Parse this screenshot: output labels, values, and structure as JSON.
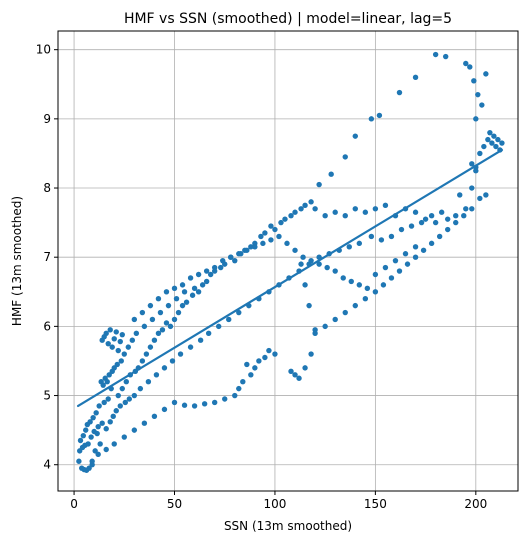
{
  "chart_data": {
    "type": "scatter",
    "title": "HMF vs SSN (smoothed)  |  model=linear, lag=5",
    "xlabel": "SSN (13m smoothed)",
    "ylabel": "HMF (13m smoothed)",
    "xlim": [
      -8,
      221
    ],
    "ylim": [
      3.62,
      10.27
    ],
    "xticks": [
      0,
      50,
      100,
      150,
      200
    ],
    "yticks": [
      4,
      5,
      6,
      7,
      8,
      9,
      10
    ],
    "grid": true,
    "colors": {
      "points": "#1f77b4",
      "fit_line": "#1f77b4",
      "grid": "#b0b0b0"
    },
    "fit_line": {
      "x": [
        2,
        213
      ],
      "y": [
        4.85,
        8.55
      ]
    },
    "points": [
      [
        2.4,
        4.05
      ],
      [
        2.8,
        4.2
      ],
      [
        3.2,
        4.35
      ],
      [
        3.8,
        3.95
      ],
      [
        4.2,
        4.25
      ],
      [
        4.6,
        4.42
      ],
      [
        5.0,
        3.93
      ],
      [
        5.4,
        4.28
      ],
      [
        5.8,
        4.5
      ],
      [
        6.2,
        3.92
      ],
      [
        6.6,
        4.58
      ],
      [
        7.0,
        4.3
      ],
      [
        7.5,
        3.95
      ],
      [
        8.0,
        4.62
      ],
      [
        8.5,
        4.4
      ],
      [
        9.0,
        4.0
      ],
      [
        9.5,
        4.68
      ],
      [
        10.0,
        4.48
      ],
      [
        10.5,
        4.2
      ],
      [
        11.0,
        4.75
      ],
      [
        11.5,
        4.45
      ],
      [
        12.0,
        4.55
      ],
      [
        12.5,
        4.85
      ],
      [
        13.0,
        4.3
      ],
      [
        13.5,
        5.2
      ],
      [
        14.0,
        4.6
      ],
      [
        14.5,
        5.15
      ],
      [
        15.0,
        4.9
      ],
      [
        15.5,
        5.25
      ],
      [
        16.0,
        4.52
      ],
      [
        16.5,
        5.2
      ],
      [
        17.0,
        4.95
      ],
      [
        17.5,
        5.3
      ],
      [
        18.0,
        4.62
      ],
      [
        18.5,
        5.1
      ],
      [
        19.0,
        5.35
      ],
      [
        19.5,
        4.7
      ],
      [
        20.0,
        5.4
      ],
      [
        21.0,
        4.78
      ],
      [
        21.5,
        5.45
      ],
      [
        22.0,
        5.0
      ],
      [
        23.0,
        4.85
      ],
      [
        23.5,
        5.5
      ],
      [
        24.0,
        5.1
      ],
      [
        25.0,
        5.6
      ],
      [
        25.5,
        4.9
      ],
      [
        26.0,
        5.2
      ],
      [
        27.0,
        5.7
      ],
      [
        27.5,
        4.95
      ],
      [
        28.0,
        5.3
      ],
      [
        29.0,
        5.8
      ],
      [
        30.0,
        5.0
      ],
      [
        30.5,
        5.35
      ],
      [
        31.0,
        5.9
      ],
      [
        32.0,
        5.4
      ],
      [
        33.0,
        5.1
      ],
      [
        34.0,
        5.5
      ],
      [
        35.0,
        6.0
      ],
      [
        36.0,
        5.6
      ],
      [
        37.0,
        5.2
      ],
      [
        38.0,
        5.7
      ],
      [
        39.0,
        6.1
      ],
      [
        40.0,
        5.8
      ],
      [
        41.0,
        5.3
      ],
      [
        42.0,
        5.9
      ],
      [
        43.0,
        6.2
      ],
      [
        44.0,
        5.95
      ],
      [
        45.0,
        5.4
      ],
      [
        46.0,
        6.05
      ],
      [
        47.0,
        6.3
      ],
      [
        48.0,
        6.0
      ],
      [
        49.0,
        5.5
      ],
      [
        50.0,
        6.1
      ],
      [
        51.0,
        6.4
      ],
      [
        52.0,
        6.2
      ],
      [
        53.0,
        5.6
      ],
      [
        54.0,
        6.3
      ],
      [
        55.0,
        6.5
      ],
      [
        56.0,
        6.35
      ],
      [
        58.0,
        5.7
      ],
      [
        59.0,
        6.45
      ],
      [
        60.0,
        6.55
      ],
      [
        62.0,
        6.5
      ],
      [
        63.0,
        5.8
      ],
      [
        64.0,
        6.6
      ],
      [
        66.0,
        6.65
      ],
      [
        67.0,
        5.9
      ],
      [
        68.0,
        6.75
      ],
      [
        70.0,
        6.8
      ],
      [
        72.0,
        6.0
      ],
      [
        73.0,
        6.85
      ],
      [
        75.0,
        6.9
      ],
      [
        77.0,
        6.1
      ],
      [
        78.0,
        7.0
      ],
      [
        80.0,
        6.95
      ],
      [
        82.0,
        6.2
      ],
      [
        83.0,
        7.05
      ],
      [
        85.0,
        7.1
      ],
      [
        87.0,
        6.3
      ],
      [
        88.0,
        7.15
      ],
      [
        90.0,
        7.2
      ],
      [
        92.0,
        6.4
      ],
      [
        93.0,
        7.3
      ],
      [
        95.0,
        7.35
      ],
      [
        97.0,
        6.5
      ],
      [
        98.0,
        7.45
      ],
      [
        100.0,
        7.4
      ],
      [
        102.0,
        6.6
      ],
      [
        103.0,
        7.5
      ],
      [
        105.0,
        7.55
      ],
      [
        107.0,
        6.7
      ],
      [
        108.0,
        7.6
      ],
      [
        110.0,
        7.65
      ],
      [
        112.0,
        6.8
      ],
      [
        113.0,
        7.7
      ],
      [
        115.0,
        7.75
      ],
      [
        117.0,
        6.9
      ],
      [
        118.0,
        7.8
      ],
      [
        120.0,
        7.7
      ],
      [
        122.0,
        7.0
      ],
      [
        125.0,
        7.6
      ],
      [
        127.0,
        7.05
      ],
      [
        130.0,
        7.65
      ],
      [
        132.0,
        7.1
      ],
      [
        135.0,
        7.6
      ],
      [
        137.0,
        7.15
      ],
      [
        140.0,
        7.7
      ],
      [
        142.0,
        7.2
      ],
      [
        145.0,
        7.65
      ],
      [
        148.0,
        7.3
      ],
      [
        150.0,
        7.7
      ],
      [
        153.0,
        7.25
      ],
      [
        155.0,
        7.75
      ],
      [
        158.0,
        7.3
      ],
      [
        160.0,
        7.6
      ],
      [
        163.0,
        7.4
      ],
      [
        165.0,
        7.7
      ],
      [
        168.0,
        7.45
      ],
      [
        170.0,
        7.65
      ],
      [
        173.0,
        7.5
      ],
      [
        175.0,
        7.55
      ],
      [
        178.0,
        7.6
      ],
      [
        180.0,
        7.5
      ],
      [
        183.0,
        7.65
      ],
      [
        186.0,
        7.55
      ],
      [
        190.0,
        7.6
      ],
      [
        192.0,
        7.9
      ],
      [
        195.0,
        7.7
      ],
      [
        198.0,
        8.0
      ],
      [
        200.0,
        8.3
      ],
      [
        202.0,
        8.5
      ],
      [
        204.0,
        8.6
      ],
      [
        206.0,
        8.7
      ],
      [
        207.0,
        8.8
      ],
      [
        208.0,
        8.65
      ],
      [
        209.0,
        8.75
      ],
      [
        210.0,
        8.6
      ],
      [
        211.0,
        8.7
      ],
      [
        212.0,
        8.55
      ],
      [
        213.0,
        8.65
      ],
      [
        203.0,
        9.2
      ],
      [
        201.0,
        9.35
      ],
      [
        200.0,
        9.0
      ],
      [
        199.0,
        9.55
      ],
      [
        205.0,
        9.65
      ],
      [
        197.0,
        9.75
      ],
      [
        195.0,
        9.8
      ],
      [
        185.0,
        9.9
      ],
      [
        180.0,
        9.93
      ],
      [
        170.0,
        9.6
      ],
      [
        162.0,
        9.38
      ],
      [
        152.0,
        9.05
      ],
      [
        148.0,
        9.0
      ],
      [
        140.0,
        8.75
      ],
      [
        135.0,
        8.45
      ],
      [
        128.0,
        8.2
      ],
      [
        122.0,
        8.05
      ],
      [
        202.0,
        7.85
      ],
      [
        205.0,
        7.9
      ],
      [
        200.0,
        8.25
      ],
      [
        198.0,
        8.35
      ],
      [
        110.0,
        5.3
      ],
      [
        108.0,
        5.35
      ],
      [
        112.0,
        5.25
      ],
      [
        115.0,
        5.4
      ],
      [
        118.0,
        5.6
      ],
      [
        120.0,
        5.9
      ],
      [
        117.0,
        6.3
      ],
      [
        115.0,
        6.6
      ],
      [
        113.0,
        6.9
      ],
      [
        100.0,
        5.6
      ],
      [
        97.0,
        5.65
      ],
      [
        95.0,
        5.55
      ],
      [
        92.0,
        5.5
      ],
      [
        90.0,
        5.4
      ],
      [
        88.0,
        5.3
      ],
      [
        86.0,
        5.45
      ],
      [
        84.0,
        5.2
      ],
      [
        82.0,
        5.1
      ],
      [
        80.0,
        5.0
      ],
      [
        75.0,
        4.95
      ],
      [
        70.0,
        4.9
      ],
      [
        65.0,
        4.88
      ],
      [
        60.0,
        4.85
      ],
      [
        55.0,
        4.86
      ],
      [
        50.0,
        4.9
      ],
      [
        45.0,
        4.8
      ],
      [
        40.0,
        4.7
      ],
      [
        35.0,
        4.6
      ],
      [
        30.0,
        4.5
      ],
      [
        25.0,
        4.4
      ],
      [
        20.0,
        4.3
      ],
      [
        16.0,
        4.22
      ],
      [
        12.0,
        4.15
      ],
      [
        9.0,
        4.05
      ],
      [
        14.0,
        5.8
      ],
      [
        15.0,
        5.85
      ],
      [
        16.0,
        5.9
      ],
      [
        17.0,
        5.75
      ],
      [
        18.0,
        5.95
      ],
      [
        19.0,
        5.7
      ],
      [
        20.0,
        5.82
      ],
      [
        21.0,
        5.92
      ],
      [
        22.0,
        5.65
      ],
      [
        23.0,
        5.78
      ],
      [
        24.0,
        5.88
      ],
      [
        30.0,
        6.1
      ],
      [
        34.0,
        6.2
      ],
      [
        38.0,
        6.3
      ],
      [
        42.0,
        6.4
      ],
      [
        46.0,
        6.5
      ],
      [
        50.0,
        6.55
      ],
      [
        54.0,
        6.6
      ],
      [
        58.0,
        6.7
      ],
      [
        62.0,
        6.75
      ],
      [
        66.0,
        6.8
      ],
      [
        70.0,
        6.85
      ],
      [
        74.0,
        6.95
      ],
      [
        78.0,
        7.0
      ],
      [
        82.0,
        7.05
      ],
      [
        86.0,
        7.1
      ],
      [
        90.0,
        7.15
      ],
      [
        94.0,
        7.2
      ],
      [
        98.0,
        7.25
      ],
      [
        102.0,
        7.3
      ],
      [
        106.0,
        7.2
      ],
      [
        110.0,
        7.1
      ],
      [
        114.0,
        7.0
      ],
      [
        118.0,
        6.95
      ],
      [
        122.0,
        6.9
      ],
      [
        126.0,
        6.85
      ],
      [
        130.0,
        6.8
      ],
      [
        134.0,
        6.7
      ],
      [
        138.0,
        6.65
      ],
      [
        142.0,
        6.6
      ],
      [
        146.0,
        6.55
      ],
      [
        150.0,
        6.5
      ],
      [
        154.0,
        6.6
      ],
      [
        158.0,
        6.7
      ],
      [
        162.0,
        6.8
      ],
      [
        166.0,
        6.9
      ],
      [
        170.0,
        7.0
      ],
      [
        174.0,
        7.1
      ],
      [
        178.0,
        7.2
      ],
      [
        182.0,
        7.3
      ],
      [
        186.0,
        7.4
      ],
      [
        190.0,
        7.5
      ],
      [
        194.0,
        7.6
      ],
      [
        198.0,
        7.7
      ],
      [
        145.0,
        6.4
      ],
      [
        140.0,
        6.3
      ],
      [
        135.0,
        6.2
      ],
      [
        130.0,
        6.1
      ],
      [
        125.0,
        6.0
      ],
      [
        120.0,
        5.95
      ],
      [
        150.0,
        6.75
      ],
      [
        155.0,
        6.85
      ],
      [
        160.0,
        6.95
      ],
      [
        165.0,
        7.05
      ],
      [
        170.0,
        7.15
      ]
    ]
  }
}
